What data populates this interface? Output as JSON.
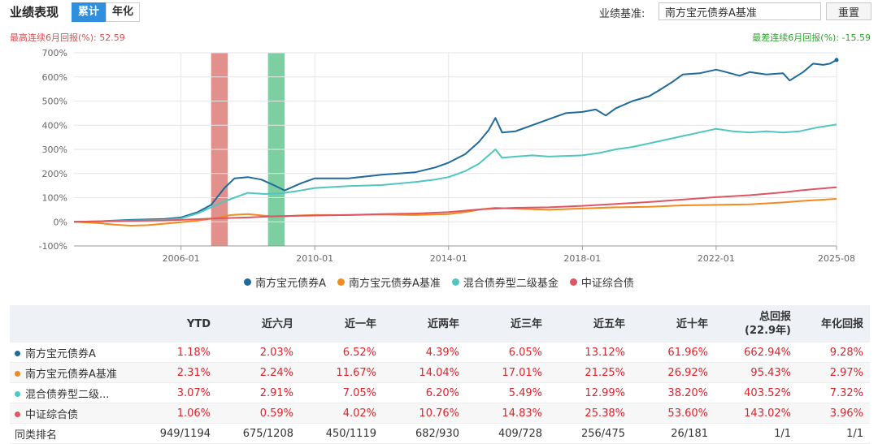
{
  "header": {
    "title": "业绩表现",
    "tabs": [
      {
        "label": "累计",
        "active": true
      },
      {
        "label": "年化",
        "active": false
      }
    ],
    "benchmark_label": "业绩基准:",
    "benchmark_value": "南方宝元债券A基准",
    "reset_label": "重置"
  },
  "drawdown": {
    "max_label": "最高连续6月回报(%): 52.59",
    "min_label": "最差连续6月回报(%): -15.59"
  },
  "chart_data": {
    "type": "line",
    "ylim": [
      -100,
      700
    ],
    "yticks": [
      -100,
      0,
      100,
      200,
      300,
      400,
      500,
      600,
      700
    ],
    "ytick_labels": [
      "-100%",
      "0%",
      "100%",
      "200%",
      "300%",
      "400%",
      "500%",
      "600%",
      "700%"
    ],
    "xlim": [
      2002.8,
      2025.6
    ],
    "xticks": [
      2006.0,
      2010.0,
      2014.0,
      2018.0,
      2022.0,
      2025.6
    ],
    "xtick_labels": [
      "2006-01",
      "2010-01",
      "2014-01",
      "2018-01",
      "2022-01",
      "2025-08"
    ],
    "highlight_bands": [
      {
        "from": 2006.9,
        "to": 2007.4,
        "color": "#d9746f"
      },
      {
        "from": 2008.6,
        "to": 2009.1,
        "color": "#5cc38a"
      }
    ],
    "series": [
      {
        "name": "南方宝元债券A",
        "color": "#1f6a9b",
        "points": [
          [
            2002.8,
            0
          ],
          [
            2003.5,
            2
          ],
          [
            2004.5,
            8
          ],
          [
            2005.5,
            12
          ],
          [
            2006.0,
            18
          ],
          [
            2006.5,
            40
          ],
          [
            2006.9,
            70
          ],
          [
            2007.3,
            140
          ],
          [
            2007.6,
            180
          ],
          [
            2008.0,
            185
          ],
          [
            2008.4,
            175
          ],
          [
            2008.8,
            150
          ],
          [
            2009.1,
            130
          ],
          [
            2009.6,
            160
          ],
          [
            2010.0,
            180
          ],
          [
            2011.0,
            180
          ],
          [
            2012.0,
            195
          ],
          [
            2013.0,
            205
          ],
          [
            2013.6,
            225
          ],
          [
            2014.0,
            245
          ],
          [
            2014.5,
            280
          ],
          [
            2014.9,
            330
          ],
          [
            2015.2,
            380
          ],
          [
            2015.4,
            430
          ],
          [
            2015.6,
            370
          ],
          [
            2016.0,
            375
          ],
          [
            2016.5,
            400
          ],
          [
            2017.0,
            425
          ],
          [
            2017.5,
            450
          ],
          [
            2018.0,
            455
          ],
          [
            2018.4,
            465
          ],
          [
            2018.7,
            440
          ],
          [
            2019.0,
            470
          ],
          [
            2019.5,
            500
          ],
          [
            2020.0,
            520
          ],
          [
            2020.3,
            545
          ],
          [
            2020.7,
            580
          ],
          [
            2021.0,
            610
          ],
          [
            2021.5,
            615
          ],
          [
            2022.0,
            630
          ],
          [
            2022.3,
            620
          ],
          [
            2022.7,
            605
          ],
          [
            2023.0,
            620
          ],
          [
            2023.5,
            610
          ],
          [
            2024.0,
            615
          ],
          [
            2024.2,
            585
          ],
          [
            2024.6,
            620
          ],
          [
            2024.9,
            655
          ],
          [
            2025.2,
            650
          ],
          [
            2025.4,
            655
          ],
          [
            2025.6,
            670
          ]
        ]
      },
      {
        "name": "南方宝元债券A基准",
        "color": "#f28a1e",
        "points": [
          [
            2002.8,
            0
          ],
          [
            2003.5,
            -5
          ],
          [
            2004.0,
            -12
          ],
          [
            2004.5,
            -16
          ],
          [
            2005.0,
            -14
          ],
          [
            2005.5,
            -8
          ],
          [
            2006.0,
            -2
          ],
          [
            2006.5,
            5
          ],
          [
            2007.0,
            15
          ],
          [
            2007.5,
            28
          ],
          [
            2008.0,
            32
          ],
          [
            2008.5,
            25
          ],
          [
            2009.0,
            22
          ],
          [
            2009.5,
            26
          ],
          [
            2010.0,
            28
          ],
          [
            2011.0,
            28
          ],
          [
            2012.0,
            30
          ],
          [
            2013.0,
            28
          ],
          [
            2014.0,
            32
          ],
          [
            2014.5,
            40
          ],
          [
            2015.0,
            52
          ],
          [
            2015.4,
            58
          ],
          [
            2015.8,
            55
          ],
          [
            2016.5,
            52
          ],
          [
            2017.0,
            50
          ],
          [
            2018.0,
            55
          ],
          [
            2019.0,
            60
          ],
          [
            2020.0,
            62
          ],
          [
            2021.0,
            68
          ],
          [
            2022.0,
            70
          ],
          [
            2023.0,
            72
          ],
          [
            2024.0,
            80
          ],
          [
            2024.5,
            86
          ],
          [
            2025.0,
            90
          ],
          [
            2025.6,
            95
          ]
        ]
      },
      {
        "name": "混合债券型二级基金",
        "color": "#4fc6c0",
        "points": [
          [
            2002.8,
            0
          ],
          [
            2003.5,
            2
          ],
          [
            2004.5,
            5
          ],
          [
            2005.5,
            8
          ],
          [
            2006.0,
            14
          ],
          [
            2006.5,
            35
          ],
          [
            2006.9,
            60
          ],
          [
            2007.3,
            85
          ],
          [
            2007.7,
            105
          ],
          [
            2008.0,
            120
          ],
          [
            2008.5,
            115
          ],
          [
            2009.0,
            118
          ],
          [
            2009.5,
            128
          ],
          [
            2010.0,
            140
          ],
          [
            2011.0,
            148
          ],
          [
            2012.0,
            152
          ],
          [
            2013.0,
            165
          ],
          [
            2013.6,
            175
          ],
          [
            2014.0,
            185
          ],
          [
            2014.5,
            210
          ],
          [
            2014.9,
            240
          ],
          [
            2015.2,
            275
          ],
          [
            2015.4,
            300
          ],
          [
            2015.6,
            265
          ],
          [
            2016.0,
            270
          ],
          [
            2016.5,
            275
          ],
          [
            2017.0,
            270
          ],
          [
            2018.0,
            275
          ],
          [
            2018.5,
            285
          ],
          [
            2019.0,
            300
          ],
          [
            2019.5,
            310
          ],
          [
            2020.0,
            325
          ],
          [
            2020.5,
            340
          ],
          [
            2021.0,
            355
          ],
          [
            2021.5,
            370
          ],
          [
            2022.0,
            385
          ],
          [
            2022.5,
            375
          ],
          [
            2023.0,
            370
          ],
          [
            2023.5,
            375
          ],
          [
            2024.0,
            370
          ],
          [
            2024.5,
            375
          ],
          [
            2025.0,
            390
          ],
          [
            2025.6,
            403
          ]
        ]
      },
      {
        "name": "中证综合债",
        "color": "#e05562",
        "points": [
          [
            2002.8,
            0
          ],
          [
            2003.5,
            2
          ],
          [
            2004.5,
            4
          ],
          [
            2005.5,
            6
          ],
          [
            2006.0,
            8
          ],
          [
            2007.0,
            14
          ],
          [
            2008.0,
            18
          ],
          [
            2009.0,
            24
          ],
          [
            2010.0,
            26
          ],
          [
            2011.0,
            28
          ],
          [
            2012.0,
            32
          ],
          [
            2013.0,
            34
          ],
          [
            2014.0,
            40
          ],
          [
            2015.0,
            52
          ],
          [
            2016.0,
            58
          ],
          [
            2017.0,
            60
          ],
          [
            2018.0,
            66
          ],
          [
            2019.0,
            74
          ],
          [
            2020.0,
            82
          ],
          [
            2021.0,
            92
          ],
          [
            2022.0,
            102
          ],
          [
            2023.0,
            110
          ],
          [
            2024.0,
            122
          ],
          [
            2024.5,
            130
          ],
          [
            2025.0,
            136
          ],
          [
            2025.6,
            143
          ]
        ]
      }
    ]
  },
  "table": {
    "headers": [
      "",
      "YTD",
      "近六月",
      "近一年",
      "近两年",
      "近三年",
      "近五年",
      "近十年",
      "总回报\n(22.9年)",
      "年化回报"
    ],
    "rows": [
      {
        "name": "南方宝元债券A",
        "color": "#1f6a9b",
        "values": [
          "1.18%",
          "2.03%",
          "6.52%",
          "4.39%",
          "6.05%",
          "13.12%",
          "61.96%",
          "662.94%",
          "9.28%"
        ]
      },
      {
        "name": "南方宝元债券A基准",
        "color": "#f28a1e",
        "values": [
          "2.31%",
          "2.24%",
          "11.67%",
          "14.04%",
          "17.01%",
          "21.25%",
          "26.92%",
          "95.43%",
          "2.97%"
        ]
      },
      {
        "name": "混合债券型二级...",
        "color": "#4fc6c0",
        "values": [
          "3.07%",
          "2.91%",
          "7.05%",
          "6.20%",
          "5.49%",
          "12.99%",
          "38.20%",
          "403.52%",
          "7.32%"
        ]
      },
      {
        "name": "中证综合债",
        "color": "#e05562",
        "values": [
          "1.06%",
          "0.59%",
          "4.02%",
          "10.76%",
          "14.83%",
          "25.38%",
          "53.60%",
          "143.02%",
          "3.96%"
        ]
      }
    ],
    "rank_row": {
      "name": "同类排名",
      "values": [
        "949/1194",
        "675/1208",
        "450/1119",
        "682/930",
        "409/728",
        "256/475",
        "26/181",
        "1/1",
        "1/1"
      ]
    }
  }
}
